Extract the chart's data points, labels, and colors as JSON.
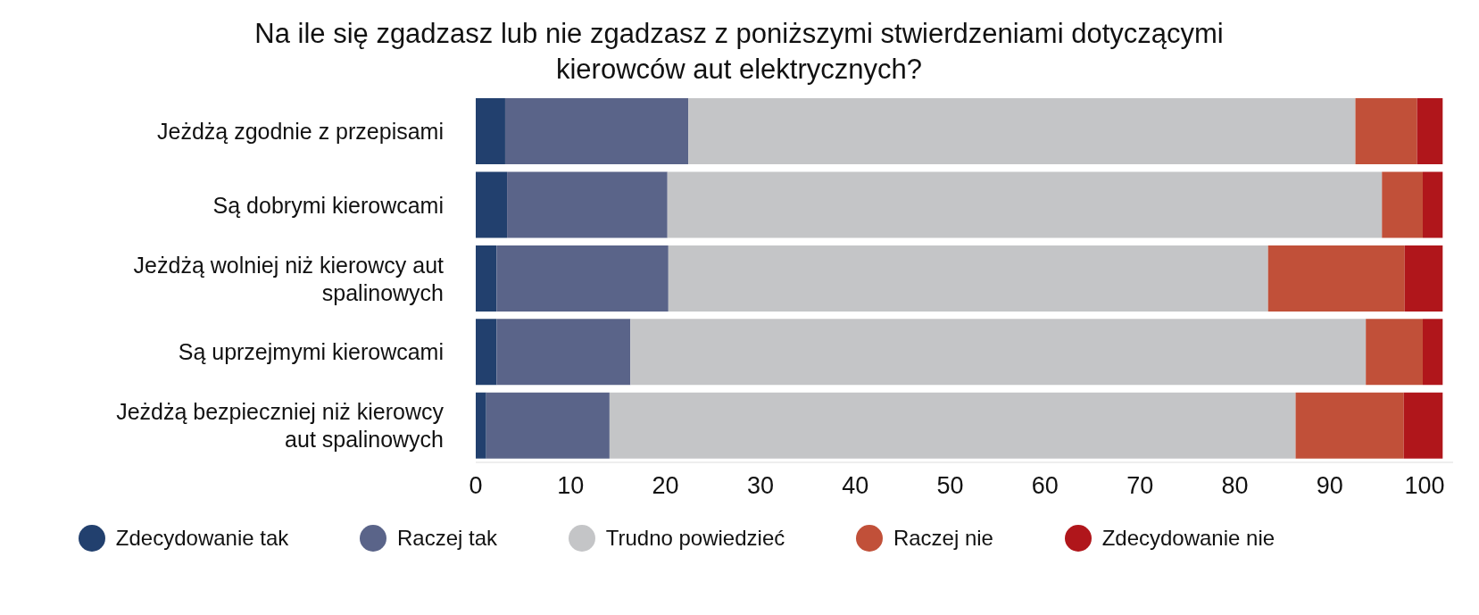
{
  "chart_data": {
    "type": "bar",
    "orientation": "horizontal",
    "stacked": true,
    "title": "Na ile się zgadzasz lub nie zgadzasz z poniższymi stwierdzeniami dotyczącymi kierowców aut elektrycznych?",
    "categories": [
      "Jeżdżą zgodnie z przepisami",
      "Są dobrymi kierowcami",
      "Jeżdżą wolniej niż kierowcy aut spalinowych",
      "Są uprzejmymi kierowcami",
      "Jeżdżą bezpieczniej niż kierowcy aut spalinowych"
    ],
    "series": [
      {
        "name": "Zdecydowanie tak",
        "color": "#22406e",
        "values": [
          3.1,
          3.3,
          2.2,
          2.2,
          1.1
        ]
      },
      {
        "name": "Raczej tak",
        "color": "#5a6489",
        "values": [
          19.3,
          16.9,
          18.1,
          14.1,
          13.0
        ]
      },
      {
        "name": "Trudno powiedzieć",
        "color": "#c4c5c7",
        "values": [
          70.3,
          75.3,
          63.2,
          77.5,
          72.3
        ]
      },
      {
        "name": "Raczej nie",
        "color": "#c15039",
        "values": [
          6.5,
          4.3,
          14.4,
          6.0,
          11.4
        ]
      },
      {
        "name": "Zdecydowanie nie",
        "color": "#b0161b",
        "values": [
          2.7,
          2.1,
          4.0,
          2.1,
          4.1
        ]
      }
    ],
    "xlim": [
      0,
      103
    ],
    "xticks": [
      0,
      10,
      20,
      30,
      40,
      50,
      60,
      70,
      80,
      90,
      100
    ],
    "grid": false,
    "legend": "bottom"
  }
}
